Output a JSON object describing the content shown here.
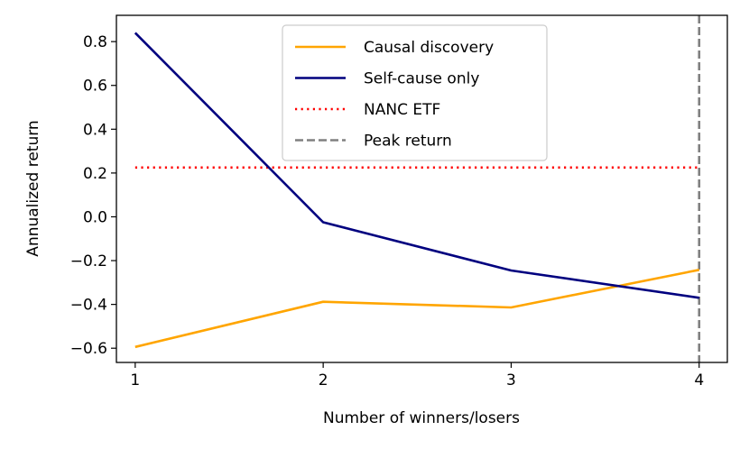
{
  "chart_data": {
    "type": "line",
    "title": "",
    "xlabel": "Number of winners/losers",
    "ylabel": "Annualized return",
    "x": [
      1,
      2,
      3,
      4
    ],
    "xlim": [
      0.9,
      4.15
    ],
    "ylim": [
      -0.665,
      0.92
    ],
    "xticks": [
      1,
      2,
      3,
      4
    ],
    "xtick_labels": [
      "1",
      "2",
      "3",
      "4"
    ],
    "yticks": [
      -0.6,
      -0.4,
      -0.2,
      0.0,
      0.2,
      0.4,
      0.6,
      0.8
    ],
    "ytick_labels": [
      "−0.6",
      "−0.4",
      "−0.2",
      "0.0",
      "0.2",
      "0.4",
      "0.6",
      "0.8"
    ],
    "grid": false,
    "legend_position": "upper-center",
    "series": [
      {
        "name": "Causal discovery",
        "values": [
          -0.594,
          -0.388,
          -0.414,
          -0.242
        ],
        "color": "#ffa500",
        "style": "solid"
      },
      {
        "name": "Self-cause only",
        "values": [
          0.84,
          -0.025,
          -0.245,
          -0.37
        ],
        "color": "#00007f",
        "style": "solid"
      }
    ],
    "reference_lines": [
      {
        "name": "NANC ETF",
        "orientation": "horizontal",
        "value": 0.225,
        "x_range": [
          1,
          4
        ],
        "color": "#ff0000",
        "style": "dotted"
      },
      {
        "name": "Peak return",
        "orientation": "vertical",
        "value": 4,
        "color": "#808080",
        "style": "dashed"
      }
    ]
  }
}
